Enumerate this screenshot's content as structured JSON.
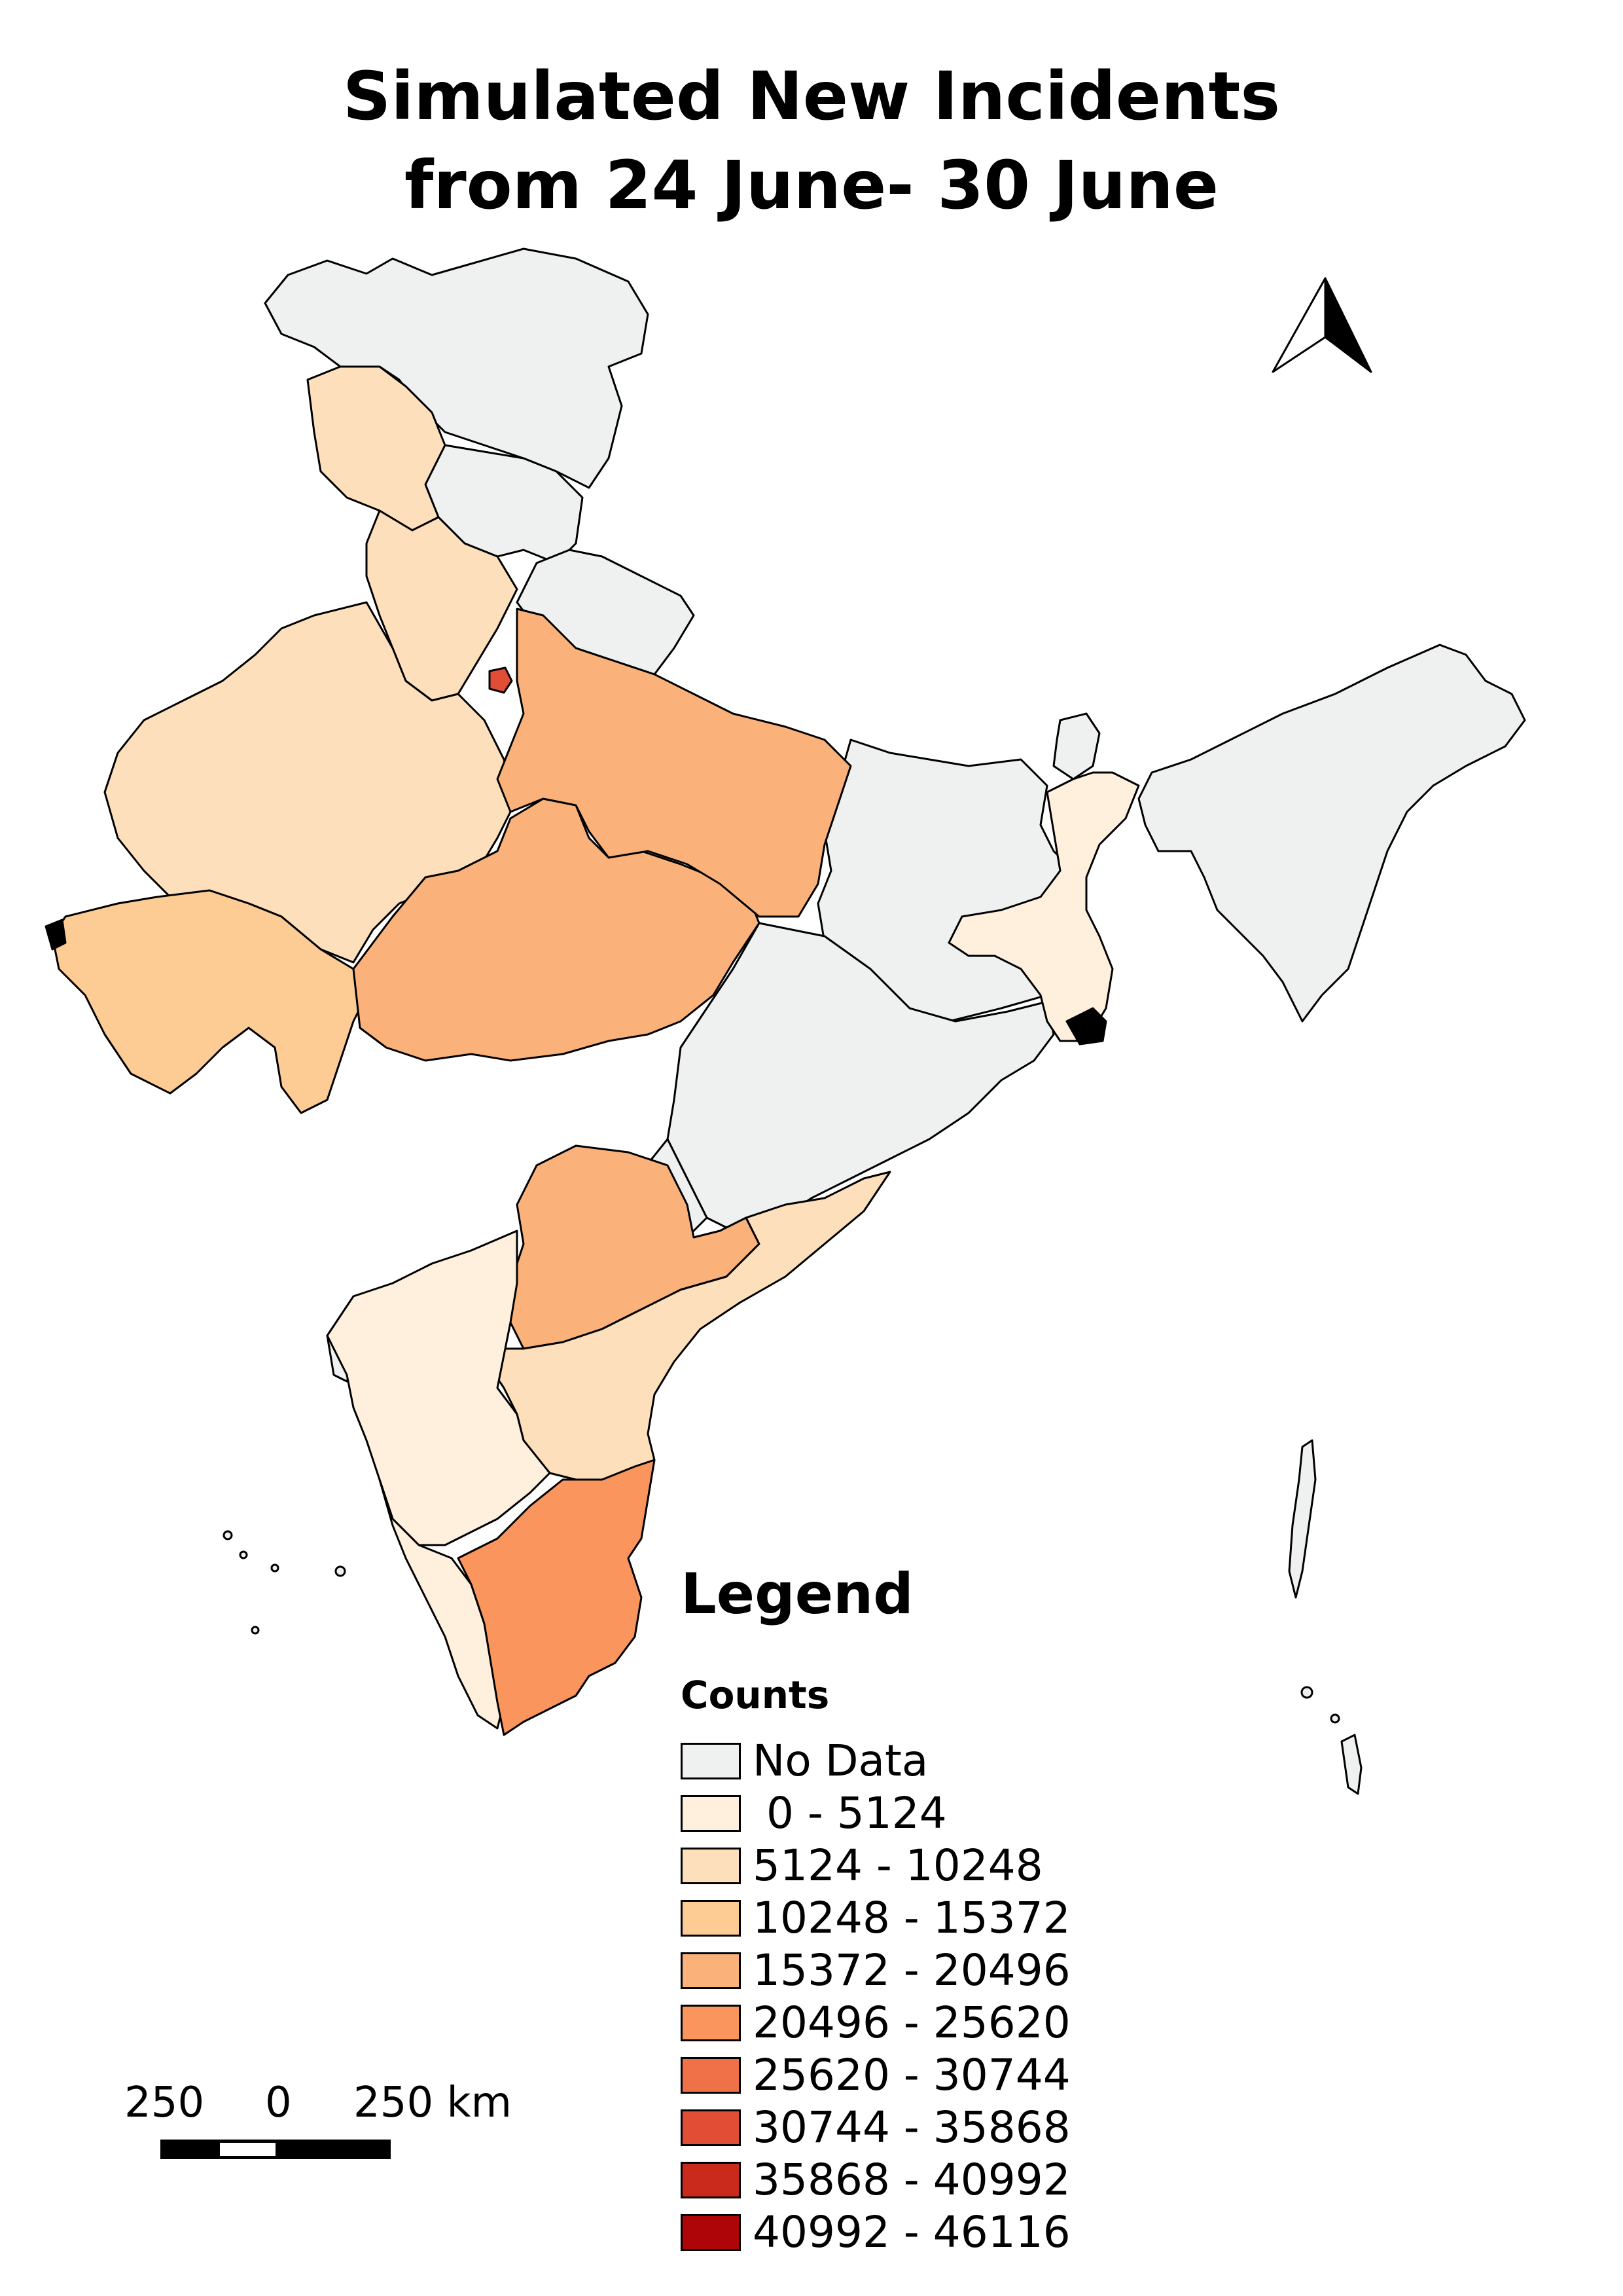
{
  "title": {
    "line1": "Simulated New Incidents",
    "line2": "from 24 June- 30 June"
  },
  "legend": {
    "heading": "Legend",
    "field": "Counts",
    "classes": [
      {
        "label": "No Data",
        "color": "#eff0f0"
      },
      {
        "label": " 0 - 5124",
        "color": "#fef0dc"
      },
      {
        "label": "5124 - 10248",
        "color": "#fde0bb"
      },
      {
        "label": "10248 - 15372",
        "color": "#fdcb94"
      },
      {
        "label": "15372 - 20496",
        "color": "#fbb27a"
      },
      {
        "label": "20496 - 25620",
        "color": "#f9955d"
      },
      {
        "label": "25620 - 30744",
        "color": "#f07047"
      },
      {
        "label": "30744 - 35868",
        "color": "#e24d36"
      },
      {
        "label": "35868 - 40992",
        "color": "#c92a1c"
      },
      {
        "label": "40992 - 46116",
        "color": "#ae0508"
      }
    ]
  },
  "scale_bar": {
    "left_label": "250",
    "mid_label": "0",
    "right_label": "250 km"
  },
  "north_arrow": "north-arrow-icon"
}
